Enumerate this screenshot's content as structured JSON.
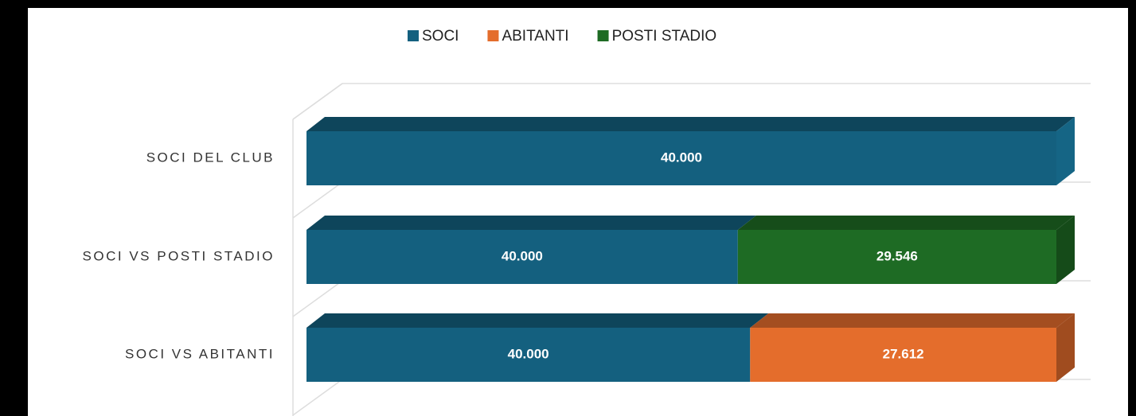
{
  "chart_data": {
    "type": "bar",
    "orientation": "horizontal",
    "stacking": "percent",
    "categories": [
      "SOCI DEL CLUB",
      "SOCI VS POSTI STADIO",
      "SOCI VS ABITANTI"
    ],
    "series": [
      {
        "name": "SOCI",
        "color": "#14607f",
        "values": [
          40000,
          40000,
          40000
        ],
        "value_labels": [
          "40.000",
          "40.000",
          "40.000"
        ]
      },
      {
        "name": "ABITANTI",
        "color": "#e46d2c",
        "values": [
          null,
          null,
          27612
        ],
        "value_labels": [
          null,
          null,
          "27.612"
        ]
      },
      {
        "name": "POSTI STADIO",
        "color": "#1e6b24",
        "values": [
          null,
          29546,
          null
        ],
        "value_labels": [
          null,
          "29.546",
          null
        ]
      }
    ],
    "legend": "top"
  }
}
